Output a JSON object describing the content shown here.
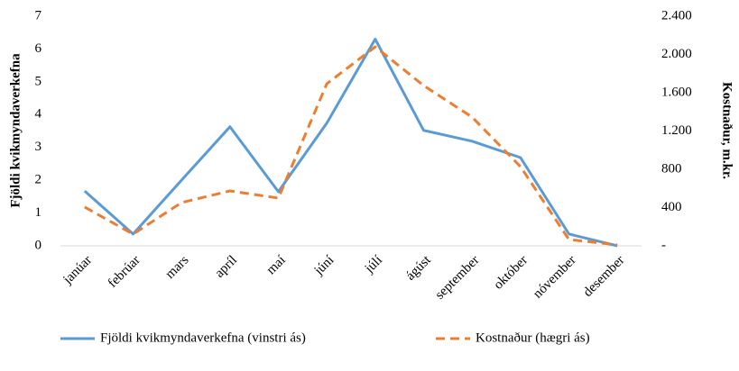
{
  "chart_data": {
    "type": "line",
    "categories": [
      "janúar",
      "febrúar",
      "mars",
      "apríl",
      "maí",
      "júní",
      "júlí",
      "ágúst",
      "september",
      "október",
      "nóvember",
      "desember"
    ],
    "series": [
      {
        "name": "Fjöldi kvikmyndaverkefna (vinstri ás)",
        "color": "#5b9bd5",
        "dash": false,
        "axis": "y",
        "values": [
          1.67,
          0.36,
          2.0,
          3.63,
          1.65,
          3.74,
          6.3,
          3.52,
          3.19,
          2.69,
          0.36,
          0
        ]
      },
      {
        "name": "Kostnaður (hægri ás)",
        "color": "#ed7d31",
        "dash": true,
        "axis": "y2",
        "values": [
          405,
          122,
          452,
          574,
          499,
          1694,
          2080,
          1675,
          1346,
          828,
          66,
          10
        ]
      }
    ],
    "ylabel": "Fjöldi kvikmyndaverkefna",
    "y2label": "Kostnaður, m.kr.",
    "ylim": [
      0,
      7
    ],
    "yticks": [
      0,
      1,
      2,
      3,
      4,
      5,
      6,
      7
    ],
    "y2lim": [
      0,
      2400
    ],
    "y2ticks": [
      {
        "value": 0,
        "label": "-"
      },
      400,
      800,
      {
        "value": 1200,
        "label": "1.200"
      },
      {
        "value": 1600,
        "label": "1.600"
      },
      {
        "value": 2000,
        "label": "2.000"
      },
      {
        "value": 2400,
        "label": "2.400"
      }
    ],
    "legend": "bottom",
    "grid": false
  }
}
